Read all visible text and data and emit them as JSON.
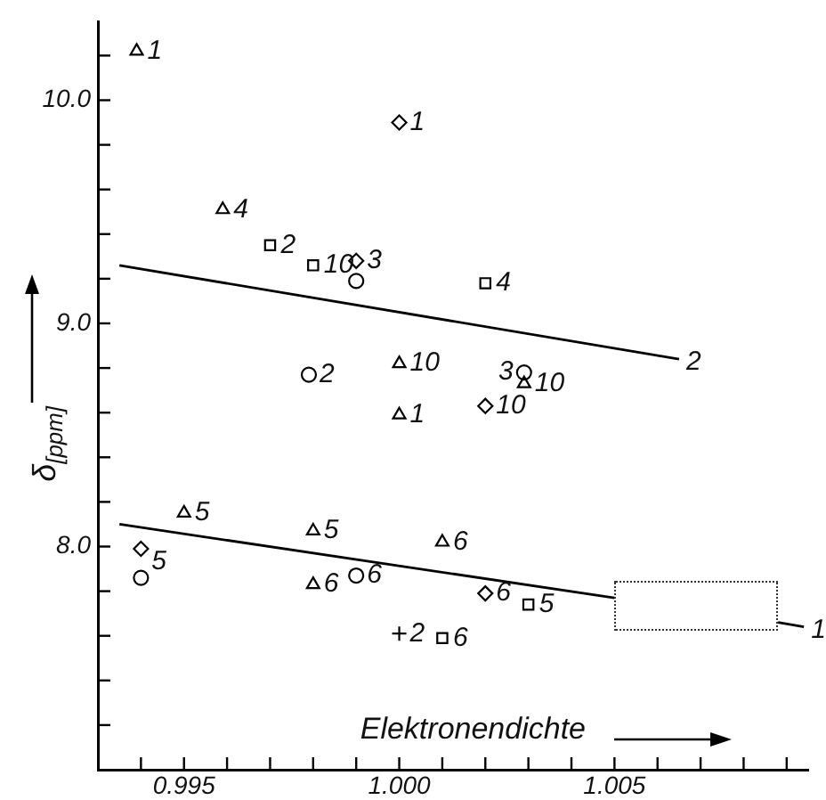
{
  "chart_data": {
    "type": "scatter",
    "xlabel": "Elektronendichte",
    "ylabel": "δ$_{[ppm]}$",
    "xlim": [
      0.993,
      1.0095
    ],
    "ylim": [
      7.0,
      10.35
    ],
    "xticks": [
      {
        "value": 0.994,
        "label": null
      },
      {
        "value": 0.995,
        "label": "0.995"
      },
      {
        "value": 0.996,
        "label": null
      },
      {
        "value": 0.997,
        "label": null
      },
      {
        "value": 0.998,
        "label": null
      },
      {
        "value": 0.999,
        "label": null
      },
      {
        "value": 1.0,
        "label": "1.000"
      },
      {
        "value": 1.001,
        "label": null
      },
      {
        "value": 1.002,
        "label": null
      },
      {
        "value": 1.003,
        "label": null
      },
      {
        "value": 1.004,
        "label": null
      },
      {
        "value": 1.005,
        "label": "1.005"
      },
      {
        "value": 1.006,
        "label": null
      },
      {
        "value": 1.007,
        "label": null
      },
      {
        "value": 1.008,
        "label": null
      },
      {
        "value": 1.009,
        "label": null
      }
    ],
    "yticks": [
      {
        "value": 7.2,
        "label": null
      },
      {
        "value": 7.4,
        "label": null
      },
      {
        "value": 7.6,
        "label": null
      },
      {
        "value": 7.8,
        "label": null
      },
      {
        "value": 8.0,
        "label": "8.0"
      },
      {
        "value": 8.2,
        "label": null
      },
      {
        "value": 8.4,
        "label": null
      },
      {
        "value": 8.6,
        "label": null
      },
      {
        "value": 8.8,
        "label": null
      },
      {
        "value": 9.0,
        "label": "9.0"
      },
      {
        "value": 9.2,
        "label": null
      },
      {
        "value": 9.4,
        "label": null
      },
      {
        "value": 9.6,
        "label": null
      },
      {
        "value": 9.8,
        "label": null
      },
      {
        "value": 10.0,
        "label": "10.0"
      },
      {
        "value": 10.2,
        "label": null
      }
    ],
    "grid": false,
    "legend": false,
    "series": [
      {
        "marker": "triangle",
        "color": "#000000",
        "x": [
          0.9939,
          0.9959,
          0.995,
          0.998,
          0.998,
          1.001,
          1.0,
          1.0,
          1.0029
        ],
        "values": [
          10.22,
          9.51,
          8.15,
          8.07,
          7.83,
          8.02,
          8.82,
          8.59,
          8.73
        ]
      },
      {
        "marker": "circle",
        "color": "#000000",
        "x": [
          0.999,
          0.9979,
          0.994,
          0.999,
          1.0029
        ],
        "values": [
          9.19,
          8.77,
          7.86,
          7.87,
          8.78
        ]
      },
      {
        "marker": "diamond",
        "color": "#000000",
        "x": [
          1.0,
          0.999,
          1.002,
          0.994,
          1.002
        ],
        "values": [
          9.9,
          9.28,
          8.63,
          7.99,
          7.79
        ]
      },
      {
        "marker": "square",
        "color": "#000000",
        "x": [
          0.997,
          0.998,
          1.002,
          1.003,
          1.001
        ],
        "values": [
          9.35,
          9.26,
          9.18,
          7.74,
          7.59
        ]
      },
      {
        "marker": "cross",
        "color": "#000000",
        "x": [
          1.0
        ],
        "values": [
          7.61
        ]
      },
      {
        "type": "line",
        "name": "2",
        "marker": "none",
        "line_style": "solid",
        "color": "#000000",
        "x": [
          0.9935,
          1.0065
        ],
        "values": [
          9.26,
          8.84
        ]
      },
      {
        "type": "line",
        "name": "1",
        "marker": "none",
        "line_style": "solid",
        "color": "#000000",
        "x": [
          0.9935,
          1.005,
          1.007,
          1.0088,
          1.0094
        ],
        "values": [
          8.1,
          7.77,
          null,
          7.66,
          7.64
        ]
      }
    ],
    "annotations": [
      {
        "text": "1",
        "x": 0.9939,
        "y": 10.22
      },
      {
        "text": "4",
        "x": 0.9959,
        "y": 9.51
      },
      {
        "text": "2",
        "x": 0.997,
        "y": 9.35
      },
      {
        "text": "10",
        "x": 0.998,
        "y": 9.26
      },
      {
        "text": "3",
        "x": 0.999,
        "y": 9.28
      },
      {
        "text": "1",
        "x": 1.0,
        "y": 9.9
      },
      {
        "text": "4",
        "x": 1.002,
        "y": 9.18
      },
      {
        "text": "2",
        "x": 0.9979,
        "y": 8.77
      },
      {
        "text": "10",
        "x": 1.0,
        "y": 8.82
      },
      {
        "text": "1",
        "x": 1.0,
        "y": 8.59
      },
      {
        "text": "10",
        "x": 1.0029,
        "y": 8.73
      },
      {
        "text": "3",
        "x": 1.0029,
        "y": 8.78
      },
      {
        "text": "10",
        "x": 1.002,
        "y": 8.63
      },
      {
        "text": "5",
        "x": 0.995,
        "y": 8.15
      },
      {
        "text": "5",
        "x": 0.994,
        "y": 7.93
      },
      {
        "text": "5",
        "x": 0.998,
        "y": 8.07
      },
      {
        "text": "6",
        "x": 0.998,
        "y": 7.83
      },
      {
        "text": "6",
        "x": 0.999,
        "y": 7.87
      },
      {
        "text": "6",
        "x": 1.001,
        "y": 8.02
      },
      {
        "text": "6",
        "x": 1.002,
        "y": 7.79
      },
      {
        "text": "5",
        "x": 1.003,
        "y": 7.74
      },
      {
        "text": "2",
        "x": 1.0,
        "y": 7.61
      },
      {
        "text": "6",
        "x": 1.001,
        "y": 7.59
      }
    ]
  }
}
